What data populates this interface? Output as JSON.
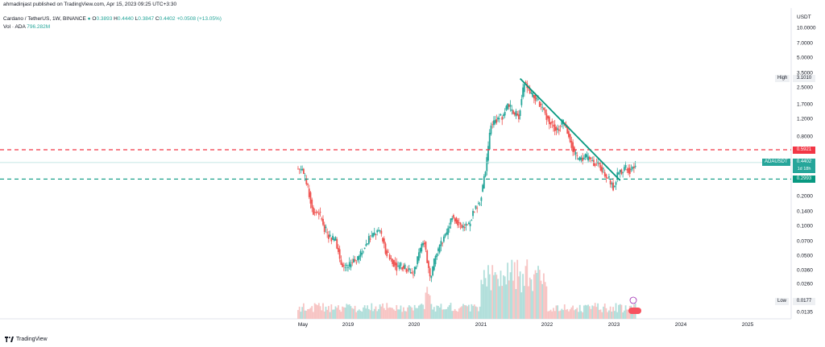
{
  "header": {
    "publisher": "ahmadinjast published on TradingView.com, Apr 15, 2023 09:25 UTC+3:30",
    "symbol": "Cardano / TetherUS, 1W, BINANCE",
    "ohlc": {
      "o_label": "O",
      "o": "0.3893",
      "h_label": "H",
      "h": "0.4440",
      "l_label": "L",
      "l": "0.3847",
      "c_label": "C",
      "c": "0.4402",
      "change": "+0.0508 (+13.05%)"
    },
    "volume_label": "Vol · ADA",
    "volume_value": "796.282M"
  },
  "axis": {
    "currency": "USDT",
    "price_ticks": [
      "10.0000",
      "7.0000",
      "5.0000",
      "3.5000",
      "2.5000",
      "1.7000",
      "1.2000",
      "0.8000",
      "0.5921",
      "0.4402",
      "0.2993",
      "0.2000",
      "0.1400",
      "0.1000",
      "0.0700",
      "0.0500",
      "0.0360",
      "0.0260",
      "0.0177",
      "0.0135"
    ],
    "time_ticks": [
      "May",
      "2019",
      "2020",
      "2021",
      "2022",
      "2023",
      "2024",
      "2025"
    ]
  },
  "labels": {
    "high_tag": "High",
    "high_value": "3.1010",
    "low_tag": "Low",
    "low_value": "0.0177",
    "current_symbol": "ADAUSDT",
    "current_price": "0.4402",
    "countdown": "1d 18h",
    "resistance": "0.5921",
    "support": "0.2993"
  },
  "footer": {
    "brand": "TradingView"
  },
  "colors": {
    "up": "#26a69a",
    "down": "#ef5350",
    "resistance": "#f23645",
    "support": "#089981",
    "trendline": "#089981",
    "axis_bg": "#ffffff"
  },
  "chart_data": {
    "type": "candlestick",
    "symbol": "ADAUSDT",
    "scale": "log",
    "ylim": [
      0.0135,
      10.0
    ],
    "horizontal_lines": [
      {
        "price": 0.5921,
        "style": "dashed",
        "color": "#f23645"
      },
      {
        "price": 0.2993,
        "style": "dashed",
        "color": "#089981"
      }
    ],
    "trendline": {
      "from": {
        "date": "2021-08",
        "price": 3.1
      },
      "to": {
        "date": "2023-02",
        "price": 0.29
      }
    },
    "series": [
      {
        "date": "2018-04",
        "close": 0.38
      },
      {
        "date": "2018-05",
        "close": 0.24
      },
      {
        "date": "2018-06",
        "close": 0.14
      },
      {
        "date": "2018-07",
        "close": 0.14
      },
      {
        "date": "2018-08",
        "close": 0.096
      },
      {
        "date": "2018-09",
        "close": 0.077
      },
      {
        "date": "2018-10",
        "close": 0.074
      },
      {
        "date": "2018-11",
        "close": 0.042
      },
      {
        "date": "2018-12",
        "close": 0.038
      },
      {
        "date": "2019-01",
        "close": 0.043
      },
      {
        "date": "2019-02",
        "close": 0.046
      },
      {
        "date": "2019-03",
        "close": 0.059
      },
      {
        "date": "2019-04",
        "close": 0.075
      },
      {
        "date": "2019-05",
        "close": 0.083
      },
      {
        "date": "2019-06",
        "close": 0.09
      },
      {
        "date": "2019-07",
        "close": 0.057
      },
      {
        "date": "2019-08",
        "close": 0.047
      },
      {
        "date": "2019-09",
        "close": 0.039
      },
      {
        "date": "2019-10",
        "close": 0.04
      },
      {
        "date": "2019-11",
        "close": 0.036
      },
      {
        "date": "2019-12",
        "close": 0.033
      },
      {
        "date": "2020-01",
        "close": 0.054
      },
      {
        "date": "2020-02",
        "close": 0.07
      },
      {
        "date": "2020-03",
        "close": 0.03
      },
      {
        "date": "2020-04",
        "close": 0.049
      },
      {
        "date": "2020-05",
        "close": 0.068
      },
      {
        "date": "2020-06",
        "close": 0.082
      },
      {
        "date": "2020-07",
        "close": 0.13
      },
      {
        "date": "2020-08",
        "close": 0.11
      },
      {
        "date": "2020-09",
        "close": 0.098
      },
      {
        "date": "2020-10",
        "close": 0.1
      },
      {
        "date": "2020-11",
        "close": 0.15
      },
      {
        "date": "2020-12",
        "close": 0.18
      },
      {
        "date": "2021-01",
        "close": 0.36
      },
      {
        "date": "2021-02",
        "close": 1.07
      },
      {
        "date": "2021-03",
        "close": 1.2
      },
      {
        "date": "2021-04",
        "close": 1.3
      },
      {
        "date": "2021-05",
        "close": 1.7
      },
      {
        "date": "2021-06",
        "close": 1.4
      },
      {
        "date": "2021-07",
        "close": 1.3
      },
      {
        "date": "2021-08",
        "close": 2.85
      },
      {
        "date": "2021-09",
        "close": 2.2
      },
      {
        "date": "2021-10",
        "close": 1.95
      },
      {
        "date": "2021-11",
        "close": 1.6
      },
      {
        "date": "2021-12",
        "close": 1.3
      },
      {
        "date": "2022-01",
        "close": 1.05
      },
      {
        "date": "2022-02",
        "close": 0.95
      },
      {
        "date": "2022-03",
        "close": 1.12
      },
      {
        "date": "2022-04",
        "close": 0.85
      },
      {
        "date": "2022-05",
        "close": 0.53
      },
      {
        "date": "2022-06",
        "close": 0.47
      },
      {
        "date": "2022-07",
        "close": 0.5
      },
      {
        "date": "2022-08",
        "close": 0.46
      },
      {
        "date": "2022-09",
        "close": 0.43
      },
      {
        "date": "2022-10",
        "close": 0.38
      },
      {
        "date": "2022-11",
        "close": 0.31
      },
      {
        "date": "2022-12",
        "close": 0.25
      },
      {
        "date": "2023-01",
        "close": 0.35
      },
      {
        "date": "2023-02",
        "close": 0.39
      },
      {
        "date": "2023-03",
        "close": 0.37
      },
      {
        "date": "2023-04",
        "close": 0.4402
      }
    ]
  }
}
